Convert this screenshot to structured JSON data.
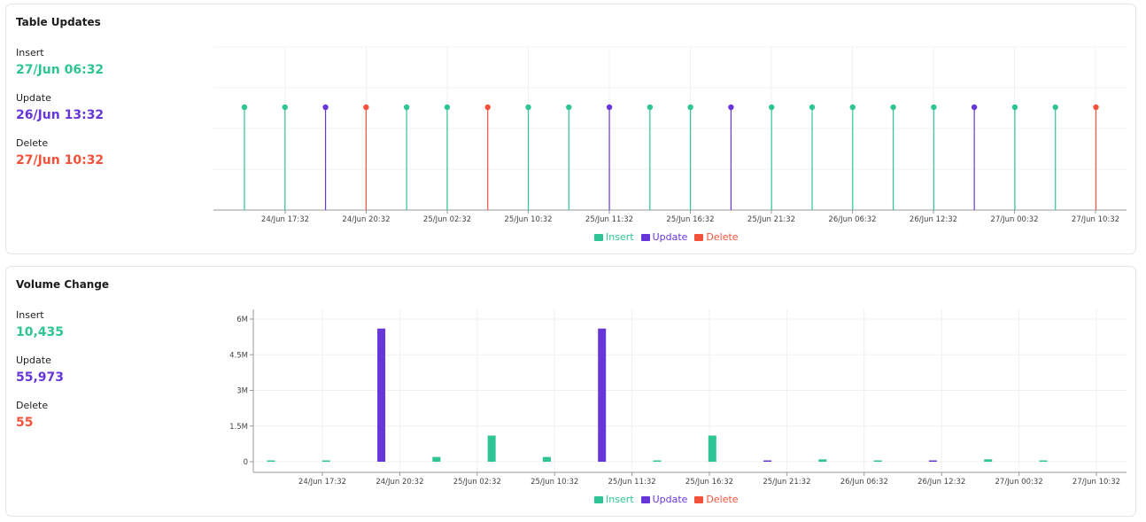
{
  "colors": {
    "insert": "#2ec493",
    "update": "#6736d9",
    "delete": "#f4513a"
  },
  "updates_card": {
    "title": "Table Updates",
    "stats": [
      {
        "label": "Insert",
        "value": "27/Jun 06:32"
      },
      {
        "label": "Update",
        "value": "26/Jun 13:32"
      },
      {
        "label": "Delete",
        "value": "27/Jun 10:32"
      }
    ],
    "legend": [
      "Insert",
      "Update",
      "Delete"
    ]
  },
  "volume_card": {
    "title": "Volume Change",
    "stats": [
      {
        "label": "Insert",
        "value": "10,435"
      },
      {
        "label": "Update",
        "value": "55,973"
      },
      {
        "label": "Delete",
        "value": "55"
      }
    ],
    "legend": [
      "Insert",
      "Update",
      "Delete"
    ]
  },
  "chart_data": [
    {
      "type": "scatter",
      "title": "Table Updates",
      "x_ticks": [
        "24/Jun 17:32",
        "24/Jun 20:32",
        "25/Jun 02:32",
        "25/Jun 10:32",
        "25/Jun 11:32",
        "25/Jun 16:32",
        "25/Jun 21:32",
        "26/Jun 06:32",
        "26/Jun 12:32",
        "27/Jun 00:32",
        "27/Jun 10:32"
      ],
      "y_labels": false,
      "grid": true,
      "legend_position": "bottom-center",
      "events": [
        "Insert",
        "Insert",
        "Update",
        "Delete",
        "Insert",
        "Insert",
        "Delete",
        "Insert",
        "Insert",
        "Update",
        "Insert",
        "Insert",
        "Update",
        "Insert",
        "Insert",
        "Insert",
        "Insert",
        "Insert",
        "Update",
        "Insert",
        "Insert",
        "Delete"
      ]
    },
    {
      "type": "bar",
      "title": "Volume Change",
      "x_ticks": [
        "24/Jun 17:32",
        "24/Jun 20:32",
        "25/Jun 02:32",
        "25/Jun 10:32",
        "25/Jun 11:32",
        "25/Jun 16:32",
        "25/Jun 21:32",
        "26/Jun 06:32",
        "26/Jun 12:32",
        "27/Jun 00:32",
        "27/Jun 10:32"
      ],
      "y_ticks": [
        "0",
        "1.5M",
        "3M",
        "4.5M",
        "6M"
      ],
      "ylim": [
        0,
        6000000
      ],
      "grid": true,
      "legend_position": "bottom-center",
      "bars": [
        {
          "series": "Insert",
          "value": 40000
        },
        {
          "series": "Insert",
          "value": 40000
        },
        {
          "series": "Update",
          "value": 5600000
        },
        {
          "series": "Insert",
          "value": 200000
        },
        {
          "series": "Insert",
          "value": 1100000
        },
        {
          "series": "Insert",
          "value": 200000
        },
        {
          "series": "Update",
          "value": 5600000
        },
        {
          "series": "Insert",
          "value": 40000
        },
        {
          "series": "Insert",
          "value": 1100000
        },
        {
          "series": "Update",
          "value": 40000
        },
        {
          "series": "Insert",
          "value": 100000
        },
        {
          "series": "Insert",
          "value": 20000
        },
        {
          "series": "Update",
          "value": 50000
        },
        {
          "series": "Insert",
          "value": 100000
        },
        {
          "series": "Insert",
          "value": 20000
        }
      ]
    }
  ]
}
